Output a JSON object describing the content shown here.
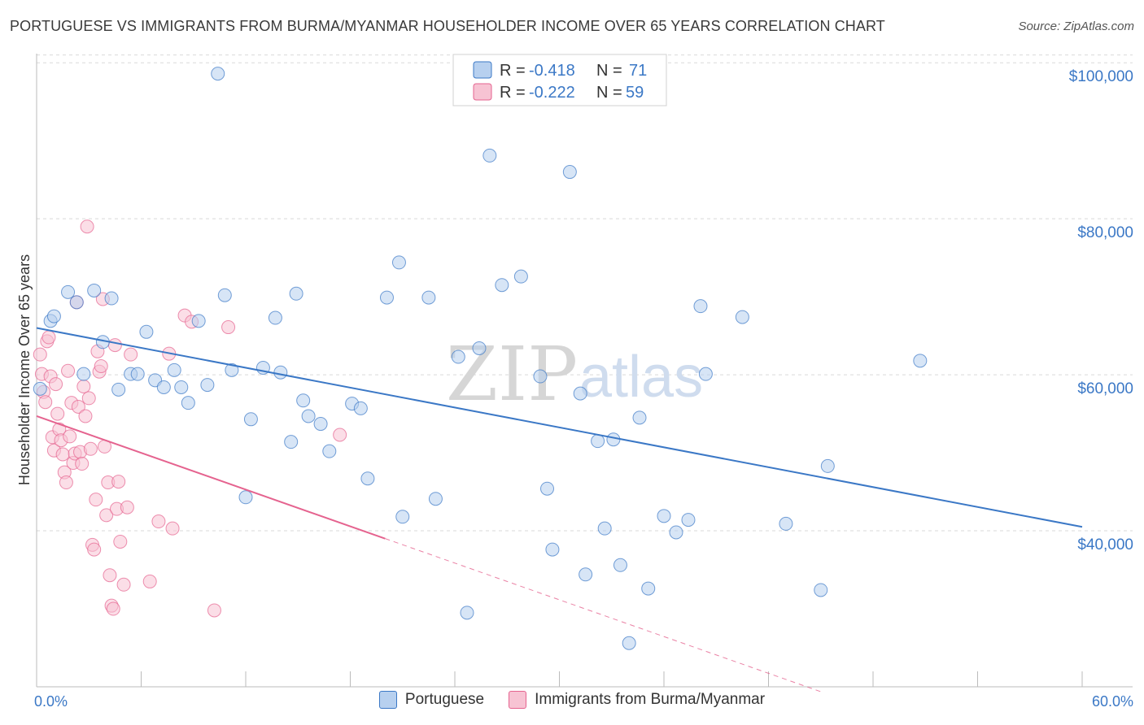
{
  "header": {
    "title": "PORTUGUESE VS IMMIGRANTS FROM BURMA/MYANMAR HOUSEHOLDER INCOME OVER 65 YEARS CORRELATION CHART",
    "source": "Source: ZipAtlas.com"
  },
  "watermark": {
    "zip": "ZIP",
    "atlas": "atlas"
  },
  "colors": {
    "blue": "#3b78c6",
    "blue_fill": "#b7d0ef",
    "pink": "#e5638f",
    "pink_fill": "#f7c3d3",
    "grid": "#d9d9d9"
  },
  "chart_data": {
    "type": "scatter",
    "title": "PORTUGUESE VS IMMIGRANTS FROM BURMA/MYANMAR HOUSEHOLDER INCOME OVER 65 YEARS CORRELATION CHART",
    "xlabel": "",
    "ylabel": "Householder Income Over 65 years",
    "xlim": [
      0,
      60
    ],
    "ylim": [
      20000,
      102000
    ],
    "x_tick_labels": [
      "0.0%",
      "60.0%"
    ],
    "y_ticks": [
      40000,
      60000,
      80000,
      100000
    ],
    "y_tick_labels": [
      "$40,000",
      "$60,000",
      "$80,000",
      "$100,000"
    ],
    "grid": true,
    "legend_position": "top-center",
    "stats": [
      {
        "r_label": "R =",
        "r": "-0.418",
        "n_label": "N =",
        "n": "71"
      },
      {
        "r_label": "R =",
        "r": "-0.222",
        "n_label": "N =",
        "n": "59"
      }
    ],
    "series": [
      {
        "name": "Portuguese",
        "color": "#3b78c6",
        "trend": {
          "x0": 0,
          "y0": 66000,
          "x1": 60,
          "y1": 40500,
          "dashed_to": 60
        },
        "points": [
          [
            0.2,
            58200
          ],
          [
            0.8,
            66900
          ],
          [
            1.0,
            67500
          ],
          [
            1.8,
            70600
          ],
          [
            2.3,
            69300
          ],
          [
            3.3,
            70800
          ],
          [
            2.7,
            60100
          ],
          [
            3.8,
            64200
          ],
          [
            4.3,
            69800
          ],
          [
            4.7,
            58100
          ],
          [
            5.4,
            60100
          ],
          [
            5.8,
            60100
          ],
          [
            6.3,
            65500
          ],
          [
            6.8,
            59300
          ],
          [
            7.3,
            58400
          ],
          [
            7.9,
            60600
          ],
          [
            8.3,
            58400
          ],
          [
            8.7,
            56400
          ],
          [
            9.3,
            66900
          ],
          [
            9.8,
            58700
          ],
          [
            10.4,
            98600
          ],
          [
            10.8,
            70200
          ],
          [
            11.2,
            60600
          ],
          [
            12.3,
            54300
          ],
          [
            12.0,
            44300
          ],
          [
            13.0,
            60900
          ],
          [
            13.7,
            67300
          ],
          [
            14.0,
            60300
          ],
          [
            14.6,
            51400
          ],
          [
            14.9,
            70400
          ],
          [
            15.3,
            56700
          ],
          [
            15.6,
            54700
          ],
          [
            16.3,
            53700
          ],
          [
            16.8,
            50200
          ],
          [
            18.1,
            56300
          ],
          [
            18.6,
            55700
          ],
          [
            19.0,
            46700
          ],
          [
            20.1,
            69900
          ],
          [
            20.8,
            74400
          ],
          [
            21.0,
            41800
          ],
          [
            22.5,
            69900
          ],
          [
            22.9,
            44100
          ],
          [
            24.2,
            62300
          ],
          [
            24.7,
            29500
          ],
          [
            25.4,
            63400
          ],
          [
            26.0,
            88100
          ],
          [
            26.7,
            71500
          ],
          [
            27.8,
            72600
          ],
          [
            28.9,
            59800
          ],
          [
            29.3,
            45400
          ],
          [
            29.6,
            37600
          ],
          [
            30.6,
            86000
          ],
          [
            31.2,
            57600
          ],
          [
            31.5,
            34400
          ],
          [
            32.2,
            51500
          ],
          [
            32.6,
            40300
          ],
          [
            33.1,
            51700
          ],
          [
            33.5,
            35600
          ],
          [
            34.0,
            25600
          ],
          [
            34.6,
            54500
          ],
          [
            35.1,
            32600
          ],
          [
            36.0,
            41900
          ],
          [
            36.7,
            39800
          ],
          [
            37.4,
            41400
          ],
          [
            38.1,
            68800
          ],
          [
            38.4,
            60100
          ],
          [
            40.5,
            67400
          ],
          [
            43.0,
            40900
          ],
          [
            45.0,
            32400
          ],
          [
            45.4,
            48300
          ],
          [
            50.7,
            61800
          ]
        ]
      },
      {
        "name": "Immigrants from Burma/Myanmar",
        "color": "#e5638f",
        "trend": {
          "x0": 0,
          "y0": 54700,
          "x1": 20,
          "y1": 39000,
          "dashed_to": 45
        },
        "points": [
          [
            0.2,
            62600
          ],
          [
            0.3,
            60100
          ],
          [
            0.4,
            57800
          ],
          [
            0.5,
            56500
          ],
          [
            0.6,
            64300
          ],
          [
            0.7,
            64800
          ],
          [
            0.8,
            59800
          ],
          [
            0.9,
            52000
          ],
          [
            1.0,
            50300
          ],
          [
            1.1,
            58800
          ],
          [
            1.2,
            55000
          ],
          [
            1.3,
            53000
          ],
          [
            1.4,
            51600
          ],
          [
            1.5,
            49800
          ],
          [
            1.6,
            47500
          ],
          [
            1.7,
            46200
          ],
          [
            1.8,
            60500
          ],
          [
            1.9,
            52100
          ],
          [
            2.0,
            56400
          ],
          [
            2.1,
            48700
          ],
          [
            2.2,
            49900
          ],
          [
            2.3,
            69300
          ],
          [
            2.4,
            55900
          ],
          [
            2.5,
            50100
          ],
          [
            2.6,
            48600
          ],
          [
            2.7,
            58500
          ],
          [
            2.8,
            54700
          ],
          [
            2.9,
            79000
          ],
          [
            3.0,
            57000
          ],
          [
            3.1,
            50500
          ],
          [
            3.2,
            38200
          ],
          [
            3.3,
            37600
          ],
          [
            3.4,
            44000
          ],
          [
            3.5,
            63000
          ],
          [
            3.6,
            60400
          ],
          [
            3.7,
            61100
          ],
          [
            3.8,
            69700
          ],
          [
            3.9,
            50800
          ],
          [
            4.0,
            42000
          ],
          [
            4.1,
            46200
          ],
          [
            4.2,
            34300
          ],
          [
            4.3,
            30400
          ],
          [
            4.4,
            30000
          ],
          [
            4.5,
            63800
          ],
          [
            4.6,
            42800
          ],
          [
            4.7,
            46300
          ],
          [
            4.8,
            38600
          ],
          [
            5.0,
            33100
          ],
          [
            5.2,
            43000
          ],
          [
            5.4,
            62600
          ],
          [
            6.5,
            33500
          ],
          [
            7.0,
            41200
          ],
          [
            7.6,
            62700
          ],
          [
            7.8,
            40300
          ],
          [
            8.5,
            67600
          ],
          [
            8.9,
            66800
          ],
          [
            10.2,
            29800
          ],
          [
            11.0,
            66100
          ],
          [
            17.4,
            52300
          ]
        ]
      }
    ]
  }
}
